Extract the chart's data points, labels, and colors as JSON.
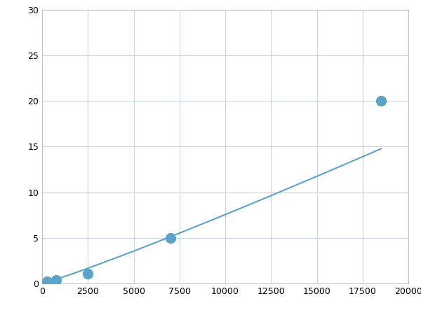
{
  "x": [
    250,
    750,
    2500,
    7000,
    18500
  ],
  "y": [
    0.2,
    0.35,
    1.1,
    5.0,
    20.0
  ],
  "line_color": "#5ba3c9",
  "marker_color": "#5ba3c9",
  "marker_size": 5,
  "marker_style": "o",
  "xlim": [
    0,
    20000
  ],
  "ylim": [
    0,
    30
  ],
  "xticks": [
    0,
    2500,
    5000,
    7500,
    10000,
    12500,
    15000,
    17500,
    20000
  ],
  "yticks": [
    0,
    5,
    10,
    15,
    20,
    25,
    30
  ],
  "grid_color": "#c8d4e0",
  "grid_style": "-",
  "background_color": "#ffffff",
  "spine_color": "#c0c0c0",
  "tick_label_fontsize": 9,
  "figsize": [
    6.0,
    4.5
  ],
  "dpi": 100
}
